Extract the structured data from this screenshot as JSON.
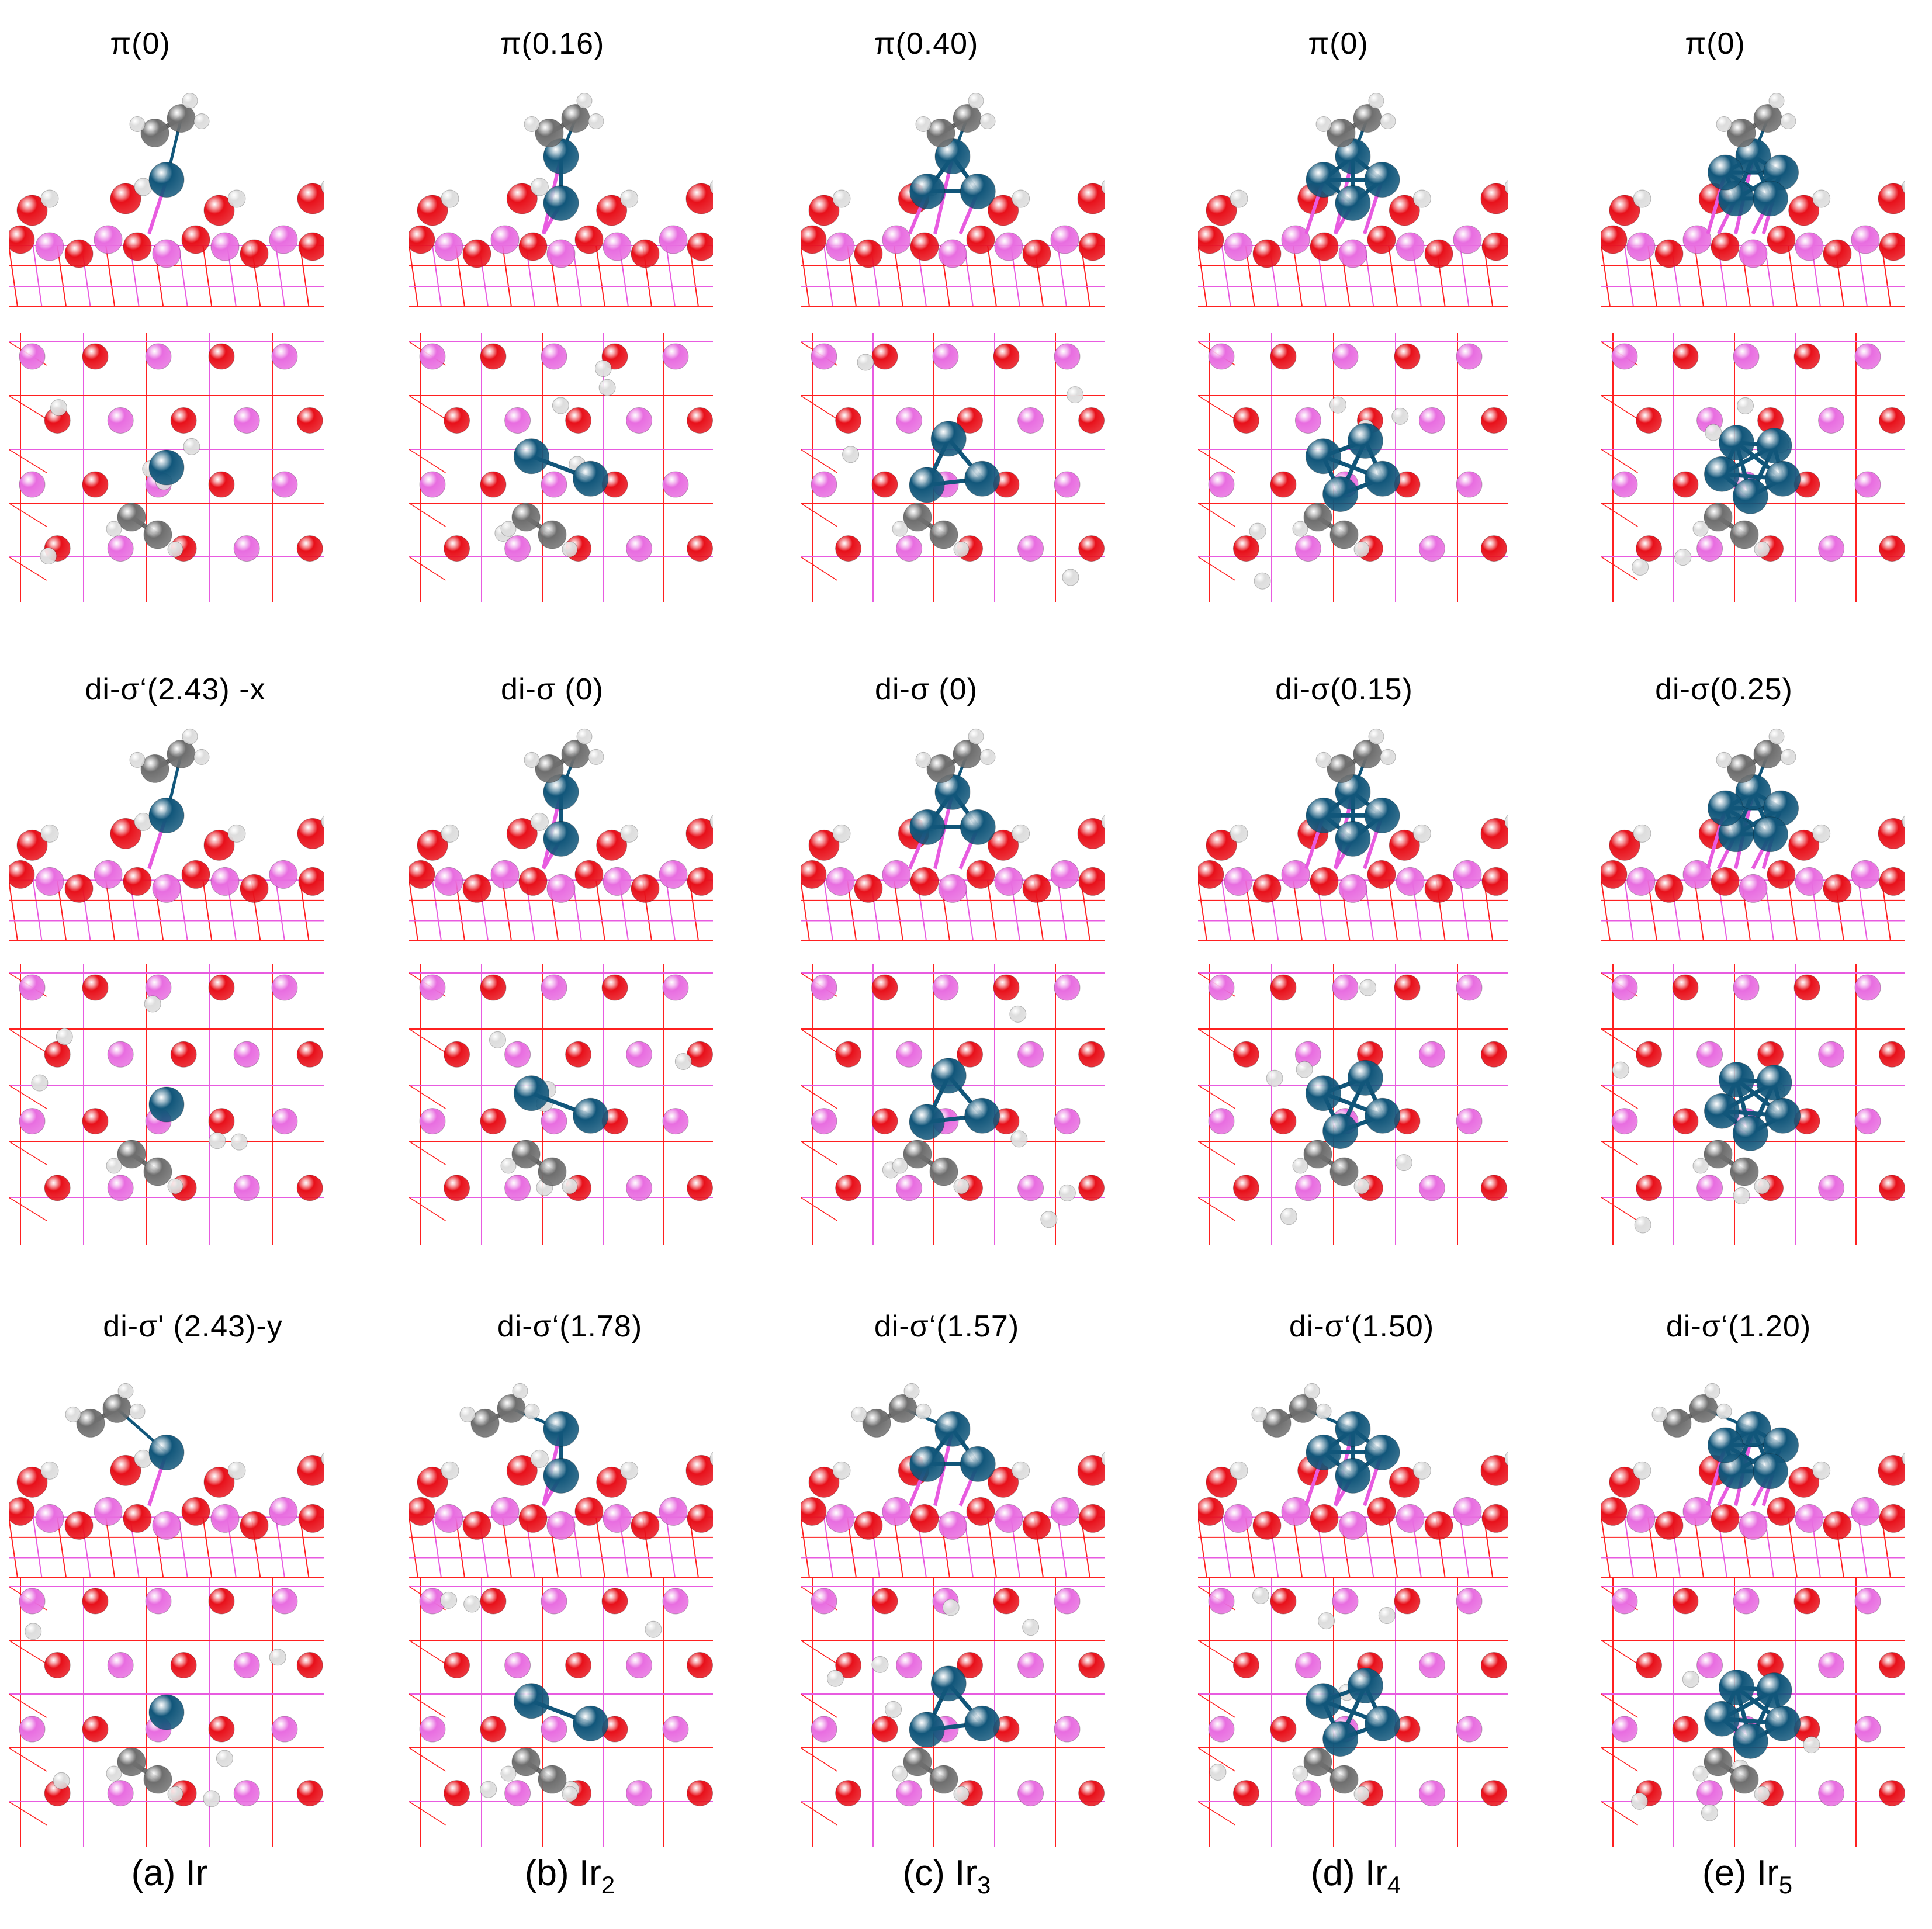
{
  "colors": {
    "ir": "#11567a",
    "o": "#e8101a",
    "si": "#e86de0",
    "h": "#f0f0f0",
    "c": "#6e6e6e",
    "bond_red": "#ff2020",
    "bond_pink": "#e85be0"
  },
  "rows": [
    {
      "labels": [
        "π(0)",
        "π(0.16)",
        "π(0.40)",
        "π(0)",
        "π(0)"
      ]
    },
    {
      "labels": [
        "di-σ‘(2.43) -x",
        "di-σ (0)",
        "di-σ (0)",
        "di-σ(0.15)",
        "di-σ(0.25)"
      ]
    },
    {
      "labels": [
        "di-σ' (2.43)-y",
        "di-σ‘(1.78)",
        "di-σ‘(1.57)",
        "di-σ‘(1.50)",
        "di-σ‘(1.20)"
      ]
    }
  ],
  "captions": [
    {
      "prefix": "(a) Ir",
      "sub": ""
    },
    {
      "prefix": "(b) Ir",
      "sub": "2"
    },
    {
      "prefix": "(c) Ir",
      "sub": "3"
    },
    {
      "prefix": "(d) Ir",
      "sub": "4"
    },
    {
      "prefix": "(e) Ir",
      "sub": "5"
    }
  ],
  "panels": {
    "ir_counts": [
      1,
      2,
      3,
      4,
      5
    ]
  }
}
